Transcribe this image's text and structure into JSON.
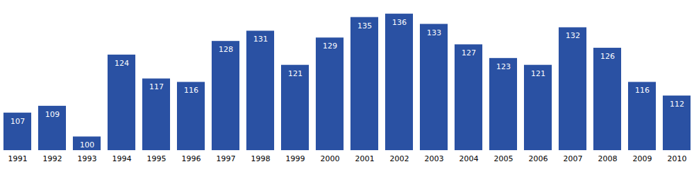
{
  "chart_data": {
    "type": "bar",
    "categories": [
      "1991",
      "1992",
      "1993",
      "1994",
      "1995",
      "1996",
      "1997",
      "1998",
      "1999",
      "2000",
      "2001",
      "2002",
      "2003",
      "2004",
      "2005",
      "2006",
      "2007",
      "2008",
      "2009",
      "2010"
    ],
    "values": [
      107,
      109,
      100,
      124,
      117,
      116,
      128,
      131,
      121,
      129,
      135,
      136,
      133,
      127,
      123,
      121,
      132,
      126,
      116,
      112
    ],
    "color": "#2a51a3",
    "ylim": [
      96,
      140
    ],
    "data_labels": true,
    "tick_labels": "x"
  }
}
